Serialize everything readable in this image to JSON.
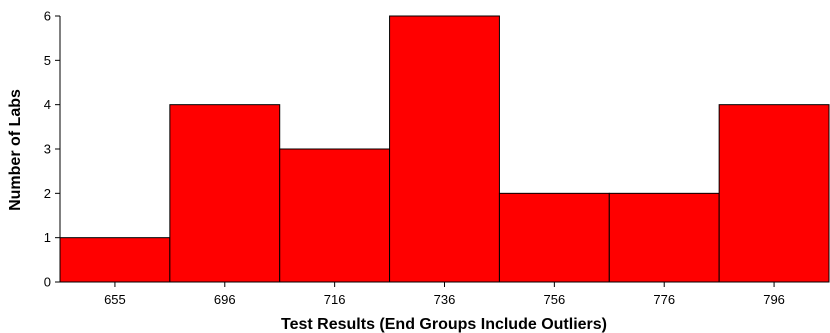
{
  "chart_data": {
    "type": "bar",
    "title": "",
    "xlabel": "Test Results (End Groups Include Outliers)",
    "ylabel": "Number of Labs",
    "categories": [
      "655",
      "696",
      "716",
      "736",
      "756",
      "776",
      "796"
    ],
    "values": [
      1,
      4,
      3,
      6,
      2,
      2,
      4
    ],
    "ylim": [
      0,
      6
    ],
    "yticks": [
      0,
      1,
      2,
      3,
      4,
      5,
      6
    ],
    "bar_color": "#ff0000",
    "bar_edge_color": "#000000",
    "grid": false,
    "legend": "none"
  }
}
